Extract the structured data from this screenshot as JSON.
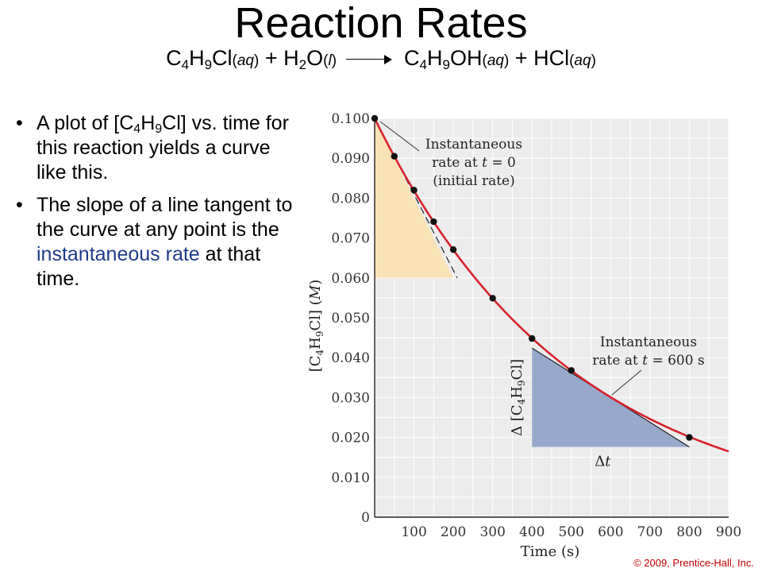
{
  "slide": {
    "title": "Reaction Rates",
    "equation": {
      "reactant1": "C4H9Cl",
      "reactant1_state": "aq",
      "plus1": "+",
      "reactant2": "H2O",
      "reactant2_state": "l",
      "product1": "C4H9OH",
      "product1_state": "aq",
      "plus2": "+",
      "product2": "HCl",
      "product2_state": "aq"
    },
    "bullets": [
      "A plot of [C4H9Cl] vs. time for this reaction yields a curve like this.",
      "The slope of a line tangent to the curve at any point is the instantaneous rate at that time."
    ],
    "bullet1": {
      "prefix": "A plot of [C",
      "sub1": "4",
      "mid": "H",
      "sub2": "9",
      "suffix": "Cl] vs. time for this reaction yields a curve like this."
    },
    "bullet2": {
      "before": "The slope of a line tangent to the curve at any point is the ",
      "highlight": "instantaneous rate",
      "after": " at that time."
    },
    "copyright": "© 2009,  Prentice-Hall,  Inc.",
    "colors": {
      "highlight": "#1f3c8a",
      "copyright": "#c00000"
    }
  },
  "chart_data": {
    "type": "line",
    "xlabel": "Time (s)",
    "ylabel": "[C4H9Cl] (M)",
    "xlim": [
      0,
      900
    ],
    "ylim": [
      0,
      0.1
    ],
    "xticks": [
      100,
      200,
      300,
      400,
      500,
      600,
      700,
      800,
      900
    ],
    "yticks": [
      0,
      0.01,
      0.02,
      0.03,
      0.04,
      0.05,
      0.06,
      0.07,
      0.08,
      0.09,
      0.1
    ],
    "ytick_labels": [
      "0",
      "0.010",
      "0.020",
      "0.030",
      "0.040",
      "0.050",
      "0.060",
      "0.070",
      "0.080",
      "0.090",
      "0.100"
    ],
    "grid": true,
    "points": [
      {
        "x": 0,
        "y": 0.1
      },
      {
        "x": 50,
        "y": 0.0905
      },
      {
        "x": 100,
        "y": 0.082
      },
      {
        "x": 150,
        "y": 0.0741
      },
      {
        "x": 200,
        "y": 0.0671
      },
      {
        "x": 300,
        "y": 0.0549
      },
      {
        "x": 400,
        "y": 0.0448
      },
      {
        "x": 500,
        "y": 0.0368
      },
      {
        "x": 800,
        "y": 0.02
      }
    ],
    "curve": {
      "color": "#d7222b",
      "x_end": 900,
      "y_end": 0.0165
    },
    "tangent_initial": {
      "x0": 0,
      "y0": 0.1,
      "x1": 210,
      "y1": 0.06
    },
    "tangent_600": {
      "x0": 400,
      "y0": 0.0424,
      "x1": 800,
      "y1": 0.0176
    },
    "triangle_initial": {
      "x_left": 0,
      "x_right": 200,
      "y_top": 0.1,
      "y_bottom": 0.06,
      "color": "#fbe2b4"
    },
    "triangle_600": {
      "x_left": 400,
      "x_right": 800,
      "y_top": 0.0424,
      "y_bottom": 0.0176,
      "color": "#97a9cb"
    },
    "annotations": {
      "initial": [
        "Instantaneous",
        "rate at t = 0",
        "(initial rate)"
      ],
      "at600": [
        "Instantaneous",
        "rate at t = 600 s"
      ],
      "delta_conc": "Δ [C4H9Cl]",
      "delta_t": "Δt"
    }
  }
}
